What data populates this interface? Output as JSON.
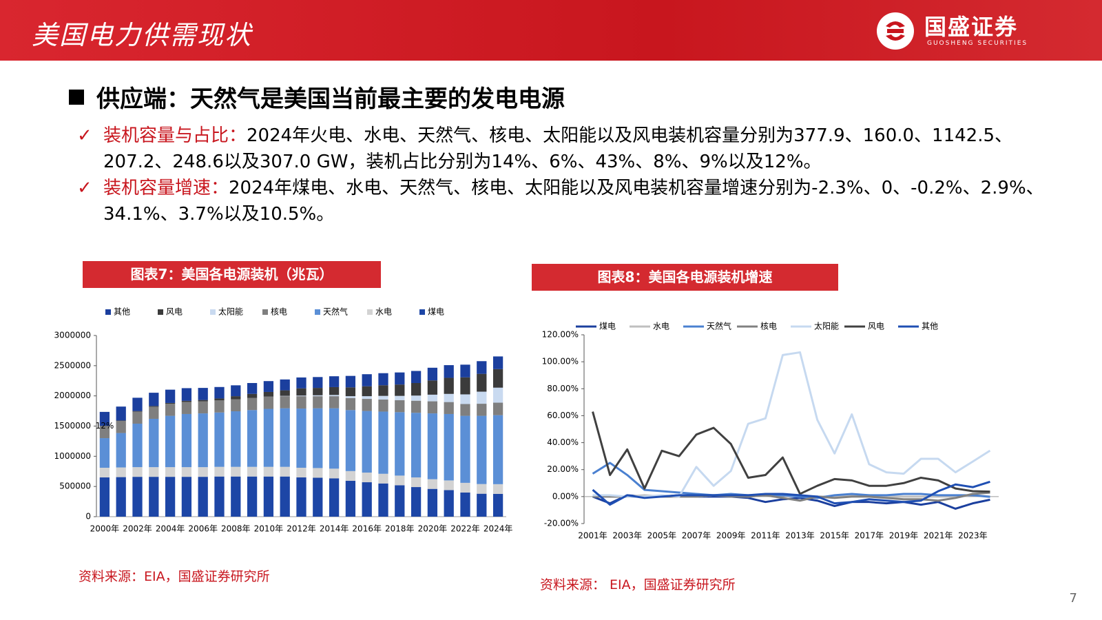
{
  "header": {
    "title": "美国电力供需现状"
  },
  "logo": {
    "name": "国盛证券",
    "subtitle": "GUOSHENG SECURITIES"
  },
  "heading": "供应端：天然气是美国当前最主要的发电电源",
  "bullets": [
    {
      "label": "装机容量与占比：",
      "text": "2024年火电、水电、天然气、核电、太阳能以及风电装机容量分别为377.9、160.0、1142.5、207.2、248.6以及307.0 GW，装机占比分别为14%、6%、43%、8%、9%以及12%。"
    },
    {
      "label": "装机容量增速：",
      "text": "2024年煤电、水电、天然气、核电、太阳能以及风电装机容量增速分别为-2.3%、0、-0.2%、2.9%、34.1%、3.7%以及10.5%。"
    }
  ],
  "page_number": "7",
  "chart_data": [
    {
      "type": "stacked-bar",
      "title": "图表7：美国各电源装机（兆瓦）",
      "source": "资料来源：EIA，国盛证券研究所",
      "annotation": "12%",
      "categories": [
        "2000年",
        null,
        "2002年",
        null,
        "2004年",
        null,
        "2006年",
        null,
        "2008年",
        null,
        "2010年",
        null,
        "2012年",
        null,
        "2014年",
        null,
        "2016年",
        null,
        "2018年",
        null,
        "2020年",
        null,
        "2022年",
        null,
        "2024年"
      ],
      "ylim": [
        0,
        3000000
      ],
      "yticks": [
        0,
        500000,
        1000000,
        1500000,
        2000000,
        2500000,
        3000000
      ],
      "series": [
        {
          "name": "其他",
          "color": "#1b3f9e",
          "values": [
            230000,
            230000,
            220000,
            220000,
            220000,
            210000,
            200000,
            190000,
            180000,
            180000,
            180000,
            180000,
            180000,
            180000,
            180000,
            190000,
            200000,
            200000,
            200000,
            200000,
            210000,
            210000,
            210000,
            210000,
            210000
          ]
        },
        {
          "name": "风电",
          "color": "#3b3b3b",
          "values": [
            5000,
            8000,
            9000,
            12000,
            13000,
            18000,
            22000,
            32000,
            50000,
            68000,
            78000,
            92000,
            120000,
            122000,
            130000,
            146000,
            164000,
            176000,
            188000,
            208000,
            236000,
            266000,
            282000,
            295000,
            307000
          ]
        },
        {
          "name": "太阳能",
          "color": "#c9daf0",
          "values": [
            0,
            0,
            0,
            0,
            0,
            0,
            0,
            0,
            0,
            0,
            2000,
            5000,
            10000,
            15000,
            20000,
            30000,
            45000,
            60000,
            70000,
            85000,
            110000,
            135000,
            160000,
            200000,
            248600
          ]
        },
        {
          "name": "核电",
          "color": "#7f7f7f",
          "values": [
            200000,
            200000,
            200000,
            200000,
            200000,
            200000,
            200000,
            200000,
            200000,
            200000,
            200000,
            200000,
            205000,
            200000,
            200000,
            200000,
            200000,
            200000,
            200000,
            200000,
            200000,
            198000,
            195000,
            200000,
            207200
          ]
        },
        {
          "name": "天然气",
          "color": "#5b8fd6",
          "values": [
            490000,
            570000,
            720000,
            800000,
            850000,
            880000,
            890000,
            900000,
            920000,
            940000,
            960000,
            970000,
            980000,
            990000,
            1000000,
            1010000,
            1020000,
            1030000,
            1050000,
            1070000,
            1090000,
            1100000,
            1110000,
            1130000,
            1142500
          ]
        },
        {
          "name": "水电",
          "color": "#d3d3d3",
          "values": [
            160000,
            160000,
            160000,
            160000,
            160000,
            160000,
            160000,
            160000,
            160000,
            160000,
            160000,
            160000,
            160000,
            160000,
            160000,
            160000,
            160000,
            160000,
            160000,
            160000,
            160000,
            160000,
            160000,
            160000,
            160000
          ]
        },
        {
          "name": "煤电",
          "color": "#1d46a6",
          "values": [
            650000,
            655000,
            660000,
            660000,
            660000,
            660000,
            660000,
            665000,
            665000,
            665000,
            665000,
            665000,
            650000,
            645000,
            635000,
            595000,
            570000,
            550000,
            520000,
            490000,
            460000,
            440000,
            400000,
            380000,
            377900
          ]
        }
      ]
    },
    {
      "type": "line",
      "title": "图表8：美国各电源装机增速",
      "source": "资料来源： EIA，国盛证券研究所",
      "categories": [
        "2001年",
        null,
        "2003年",
        null,
        "2005年",
        null,
        "2007年",
        null,
        "2009年",
        null,
        "2011年",
        null,
        "2013年",
        null,
        "2015年",
        null,
        "2017年",
        null,
        "2019年",
        null,
        "2021年",
        null,
        "2023年",
        null
      ],
      "ylim": [
        -20,
        120
      ],
      "yticks": [
        {
          "value": -20,
          "label": "-20.00%"
        },
        {
          "value": 0,
          "label": "0.00%"
        },
        {
          "value": 20,
          "label": "20.00%"
        },
        {
          "value": 40,
          "label": "40.00%"
        },
        {
          "value": 60,
          "label": "60.00%"
        },
        {
          "value": 80,
          "label": "80.00%"
        },
        {
          "value": 100,
          "label": "100.00%"
        },
        {
          "value": 120,
          "label": "120.00%"
        }
      ],
      "series": [
        {
          "name": "煤电",
          "color": "#1b3f9e",
          "values": [
            0,
            -5,
            1,
            0,
            0,
            1,
            0,
            0,
            0,
            -1,
            -4,
            -2,
            -1,
            -3,
            -7,
            -4,
            -4,
            -5,
            -4,
            -6,
            -4,
            -9,
            -5,
            -2.3
          ]
        },
        {
          "name": "水电",
          "color": "#bfbfbf",
          "values": [
            1,
            0,
            0,
            1,
            0,
            0,
            0,
            1,
            1,
            0,
            1,
            1,
            0,
            0,
            0,
            1,
            1,
            0,
            0,
            0,
            0,
            0,
            1,
            0
          ]
        },
        {
          "name": "天然气",
          "color": "#4a80d0",
          "values": [
            17,
            25,
            16,
            5,
            4,
            3,
            2,
            1,
            2,
            1,
            1,
            1,
            0,
            -1,
            1,
            2,
            1,
            1,
            2,
            2,
            1,
            1,
            1,
            -0.2
          ]
        },
        {
          "name": "核电",
          "color": "#808080",
          "values": [
            0,
            0,
            0,
            0,
            0,
            0,
            0,
            1,
            0,
            0,
            1,
            -1,
            -3,
            0,
            -1,
            0,
            0,
            -1,
            -2,
            -2,
            -3,
            -1,
            2,
            2.9
          ]
        },
        {
          "name": "太阳能",
          "color": "#c6d9f0",
          "values": [
            1,
            1,
            0,
            0,
            1,
            0,
            22,
            8,
            19,
            54,
            58,
            105,
            107,
            57,
            32,
            61,
            24,
            18,
            17,
            28,
            28,
            18,
            26,
            34.1
          ]
        },
        {
          "name": "风电",
          "color": "#404040",
          "values": [
            63,
            16,
            35,
            6,
            34,
            30,
            46,
            51,
            39,
            14,
            16,
            29,
            2,
            8,
            13,
            12,
            8,
            8,
            10,
            14,
            12,
            6,
            4,
            3.7
          ]
        },
        {
          "name": "其他",
          "color": "#1f4fb3",
          "values": [
            5,
            -6,
            1,
            -1,
            0,
            1,
            1,
            1,
            1,
            1,
            2,
            2,
            1,
            0,
            -5,
            -4,
            -2,
            -3,
            -4,
            -3,
            4,
            9,
            7,
            11
          ]
        }
      ]
    }
  ]
}
